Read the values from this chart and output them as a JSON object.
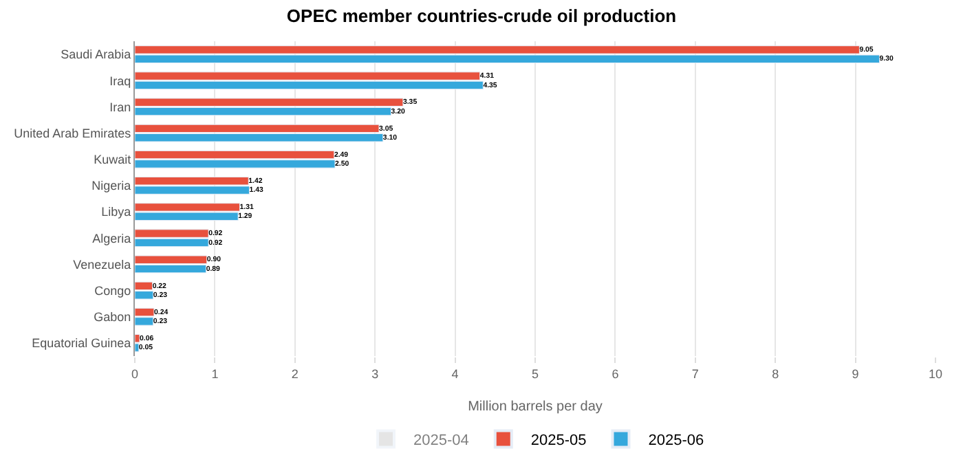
{
  "chart_data": {
    "type": "bar",
    "orientation": "horizontal",
    "title": "OPEC member countries-crude oil production",
    "xlabel": "Million barrels per day",
    "categories": [
      "Saudi Arabia",
      "Iraq",
      "Iran",
      "United Arab Emirates",
      "Kuwait",
      "Nigeria",
      "Libya",
      "Algeria",
      "Venezuela",
      "Congo",
      "Gabon",
      "Equatorial Guinea"
    ],
    "series": [
      {
        "name": "2025-04",
        "color": "#cccccc",
        "values": [
          null,
          null,
          null,
          null,
          null,
          null,
          null,
          null,
          null,
          null,
          null,
          null
        ]
      },
      {
        "name": "2025-05",
        "color": "#e8513d",
        "values": [
          9.05,
          4.31,
          3.35,
          3.05,
          2.49,
          1.42,
          1.31,
          0.92,
          0.9,
          0.22,
          0.24,
          0.06
        ],
        "value_labels": [
          "9.05",
          "4.31",
          "3.35",
          "3.05",
          "2.49",
          "1.42",
          "1.31",
          "0.92",
          "0.90",
          "0.22",
          "0.24",
          "0.06"
        ]
      },
      {
        "name": "2025-06",
        "color": "#35a8dc",
        "values": [
          9.3,
          4.35,
          3.2,
          3.1,
          2.5,
          1.43,
          1.29,
          0.92,
          0.89,
          0.23,
          0.23,
          0.05
        ],
        "value_labels": [
          "9.30",
          "4.35",
          "3.20",
          "3.10",
          "2.50",
          "1.43",
          "1.29",
          "0.92",
          "0.89",
          "0.23",
          "0.23",
          "0.05"
        ]
      }
    ],
    "xlim": [
      0,
      10
    ],
    "xticks": [
      0,
      1,
      2,
      3,
      4,
      5,
      6,
      7,
      8,
      9,
      10
    ],
    "grid": "x",
    "legend": "bottom"
  }
}
